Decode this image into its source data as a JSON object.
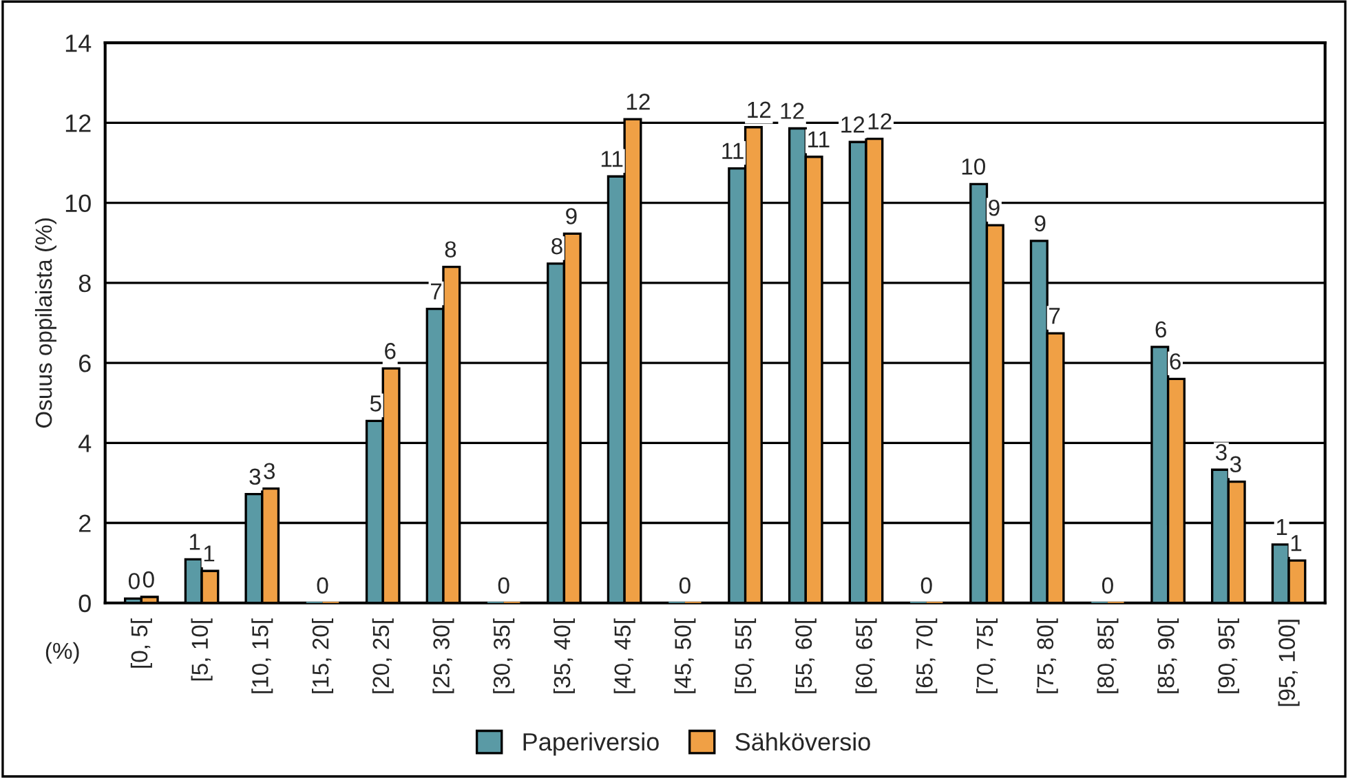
{
  "chart_data": {
    "type": "bar",
    "ylabel": "Osuus oppilaista (%)",
    "xlabel": "(%)",
    "categories": [
      "[0, 5[",
      "[5, 10[",
      "[10, 15[",
      "[15, 20[",
      "[20, 25[",
      "[25, 30[",
      "[30, 35[",
      "[35, 40[",
      "[40, 45[",
      "[45, 50[",
      "[50, 55[",
      "[55, 60[",
      "[60, 65[",
      "[65, 70[",
      "[70, 75[",
      "[75, 80[",
      "[80, 85[",
      "[85, 90[",
      "[90, 95[",
      "[95, 100]"
    ],
    "series": [
      {
        "name": "Paperiversio",
        "color": "#5a9aa5",
        "values": [
          0.11,
          1.09,
          2.72,
          0,
          4.55,
          7.35,
          0,
          8.48,
          10.66,
          0,
          10.86,
          11.86,
          11.52,
          0,
          10.47,
          9.05,
          0,
          6.4,
          3.33,
          1.46
        ],
        "value_labels": [
          "0",
          "1",
          "3",
          "0",
          "5",
          "7",
          "0",
          "8",
          "11",
          "0",
          "11",
          "12",
          "12",
          "0",
          "10",
          "9",
          "0",
          "6",
          "3",
          "1"
        ]
      },
      {
        "name": "Sähköversio",
        "color": "#f0a045",
        "values": [
          0.15,
          0.8,
          2.86,
          0,
          5.86,
          8.4,
          0,
          9.23,
          12.09,
          0,
          11.89,
          11.15,
          11.6,
          0,
          9.44,
          6.74,
          0,
          5.6,
          3.03,
          1.06
        ],
        "value_labels": [
          "0",
          "1",
          "3",
          null,
          "6",
          "8",
          null,
          "9",
          "12",
          null,
          "12",
          "11",
          "12",
          null,
          "9",
          "7",
          null,
          "6",
          "3",
          "1"
        ]
      }
    ],
    "ylim": [
      0,
      14
    ],
    "yticks": [
      0,
      2,
      4,
      6,
      8,
      10,
      12,
      14
    ],
    "grid": "y",
    "legend": "bottom"
  }
}
